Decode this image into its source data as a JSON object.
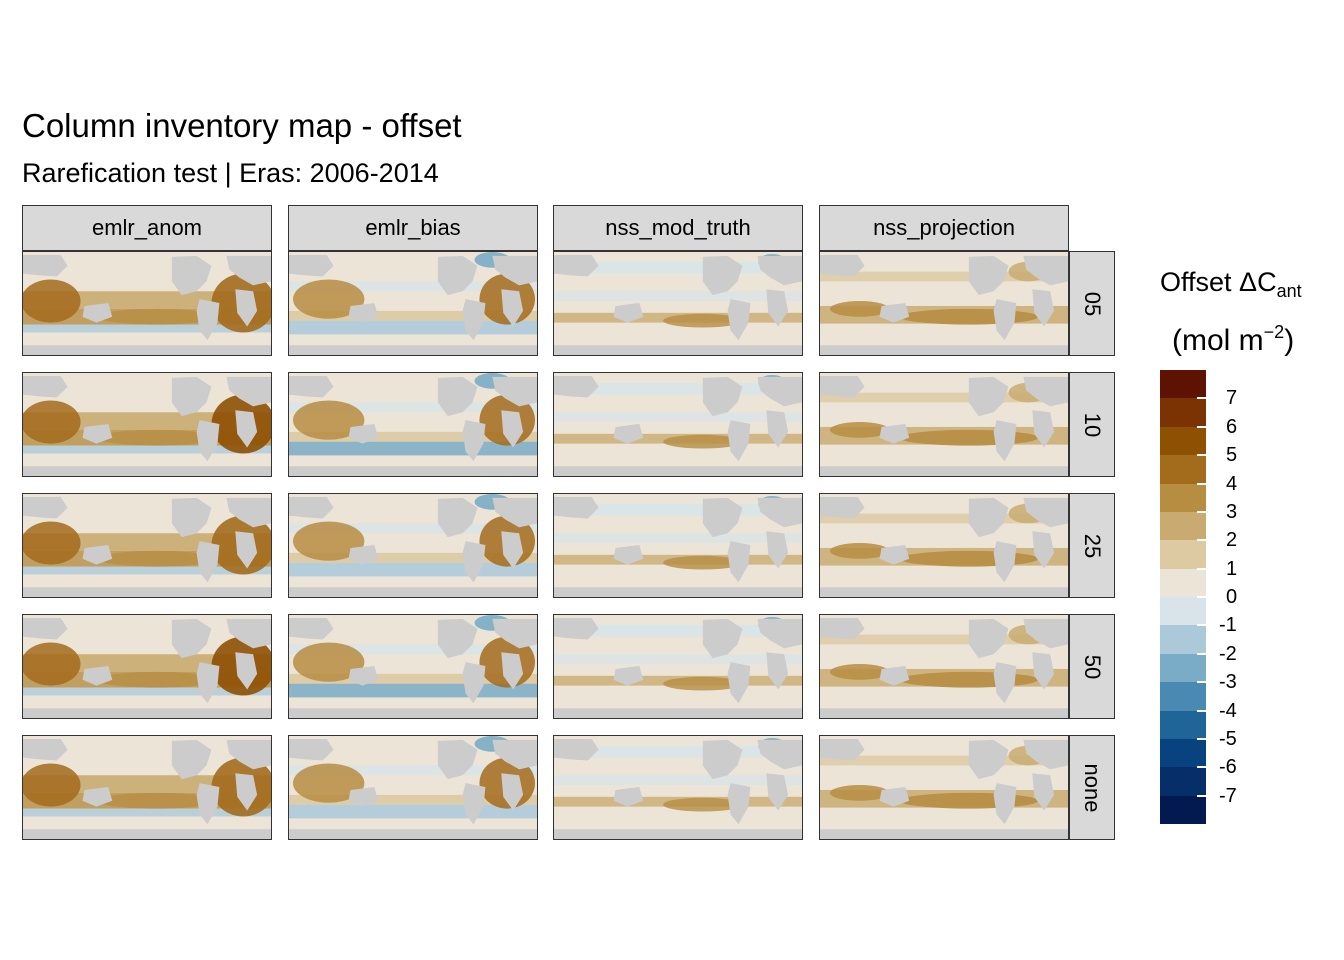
{
  "title": "Column inventory map - offset",
  "subtitle": "Rarefication test | Eras: 2006-2014",
  "columns": [
    "emlr_anom",
    "emlr_bias",
    "nss_mod_truth",
    "nss_projection"
  ],
  "rows": [
    "05",
    "10",
    "25",
    "50",
    "none"
  ],
  "legend": {
    "title_main": "Offset ΔC",
    "title_sub": "ant",
    "unit_main": "(mol m",
    "unit_sup": "−2",
    "unit_end": ")",
    "labels": [
      "7",
      "6",
      "5",
      "4",
      "3",
      "2",
      "1",
      "0",
      "-1",
      "-2",
      "-3",
      "-4",
      "-5",
      "-6",
      "-7"
    ],
    "colors": [
      "#5e1202",
      "#7c3304",
      "#8e5003",
      "#a36b1c",
      "#b78d42",
      "#c9ab71",
      "#ddc9a2",
      "#ece5d7",
      "#d8e4ea",
      "#acc9da",
      "#7bacc7",
      "#4a89b1",
      "#1f6598",
      "#08437f",
      "#062e68",
      "#031a50"
    ]
  },
  "colors": {
    "land": "#cccccc",
    "strip": "#d9d9d9"
  }
}
